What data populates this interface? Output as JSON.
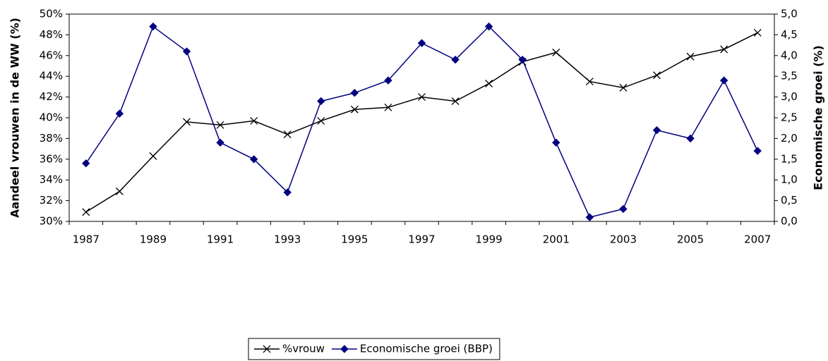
{
  "chart_data": {
    "type": "line",
    "categories": [
      "1987",
      null,
      "1989",
      null,
      "1991",
      null,
      "1993",
      null,
      "1995",
      null,
      "1997",
      null,
      "1999",
      null,
      "2001",
      null,
      "2003",
      null,
      "2005",
      null,
      "2007"
    ],
    "ylabel": "Aandeel vrouwen in de WW (%)",
    "y2label": "Economische groei (%)",
    "ylim": [
      30,
      50
    ],
    "yticks": [
      {
        "value": 30,
        "label": "30%"
      },
      {
        "value": 32,
        "label": "32%"
      },
      {
        "value": 34,
        "label": "34%"
      },
      {
        "value": 36,
        "label": "36%"
      },
      {
        "value": 38,
        "label": "38%"
      },
      {
        "value": 40,
        "label": "40%"
      },
      {
        "value": 42,
        "label": "42%"
      },
      {
        "value": 44,
        "label": "44%"
      },
      {
        "value": 46,
        "label": "46%"
      },
      {
        "value": 48,
        "label": "48%"
      },
      {
        "value": 50,
        "label": "50%"
      }
    ],
    "y2lim": [
      0,
      5
    ],
    "y2ticks": [
      {
        "value": 0,
        "label": "0,0"
      },
      {
        "value": 0.5,
        "label": "0,5"
      },
      {
        "value": 1,
        "label": "1,0"
      },
      {
        "value": 1.5,
        "label": "1,5"
      },
      {
        "value": 2,
        "label": "2,0"
      },
      {
        "value": 2.5,
        "label": "2,5"
      },
      {
        "value": 3,
        "label": "3,0"
      },
      {
        "value": 3.5,
        "label": "3,5"
      },
      {
        "value": 4,
        "label": "4,0"
      },
      {
        "value": 4.5,
        "label": "4,5"
      },
      {
        "value": 5,
        "label": "5,0"
      }
    ],
    "legend": "bottom",
    "series": [
      {
        "name": "%vrouw",
        "color": "#000000",
        "marker": "x",
        "axis": "y",
        "values": [
          30.9,
          32.9,
          36.3,
          39.6,
          39.3,
          39.7,
          38.4,
          39.7,
          40.8,
          41.0,
          42.0,
          41.6,
          43.3,
          45.4,
          46.3,
          43.5,
          42.9,
          44.1,
          45.9,
          46.6,
          48.2
        ]
      },
      {
        "name": "Economische groei (BBP)",
        "color": "#000080",
        "marker": "diamond",
        "axis": "y2",
        "values": [
          1.4,
          2.6,
          4.7,
          4.1,
          1.9,
          1.5,
          0.7,
          2.9,
          3.1,
          3.4,
          4.3,
          3.9,
          4.7,
          3.9,
          1.9,
          0.1,
          0.3,
          2.2,
          2.0,
          3.4,
          1.7
        ]
      }
    ]
  }
}
